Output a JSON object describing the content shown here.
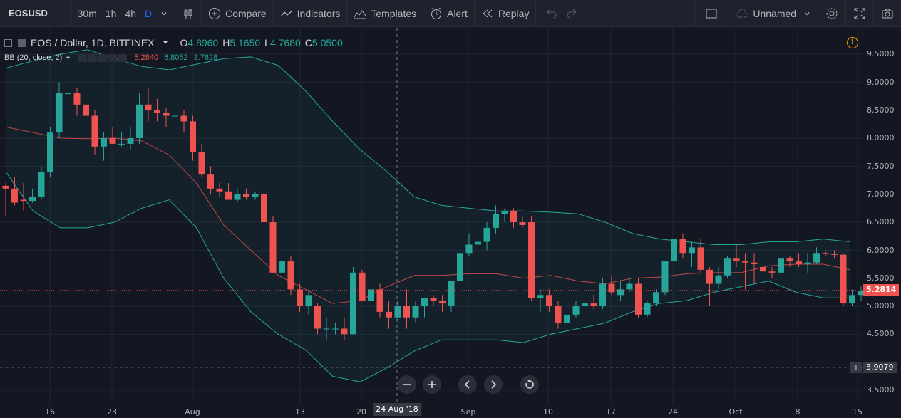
{
  "toolbar": {
    "symbol": "EOSUSD",
    "intervals": [
      "30m",
      "1h",
      "4h",
      "D"
    ],
    "active_interval": "D",
    "compare_label": "Compare",
    "indicators_label": "Indicators",
    "templates_label": "Templates",
    "alert_label": "Alert",
    "replay_label": "Replay",
    "layout_name": "Unnamed"
  },
  "legend": {
    "title": "EOS / Dollar, 1D, BITFINEX",
    "open_label": "O",
    "open": "4.8960",
    "high_label": "H",
    "high": "5.1650",
    "low_label": "L",
    "low": "4.7680",
    "close_label": "C",
    "close": "5.0500",
    "bb_label": "BB (20, close, 2)",
    "bb_basis": "5.2840",
    "bb_upper": "6.8052",
    "bb_lower": "3.7628",
    "warning_icon": "!"
  },
  "price_axis": {
    "ticks": [
      "9.5000",
      "9.0000",
      "8.5000",
      "8.0000",
      "7.5000",
      "7.0000",
      "6.5000",
      "6.0000",
      "5.5000",
      "5.0000",
      "4.5000",
      "3.5000"
    ],
    "last_price": "5.2814",
    "crosshair_price": "3.9079"
  },
  "time_axis": {
    "ticks": [
      "16",
      "23",
      "Aug",
      "13",
      "20",
      "Sep",
      "10",
      "17",
      "24",
      "Oct",
      "8",
      "15"
    ],
    "crosshair_date": "24 Aug '18"
  },
  "colors": {
    "up": "#26a69a",
    "down": "#ef5350",
    "bb_band": "#26a69a",
    "bb_basis": "#ef5350",
    "last_price": "#ef5350"
  },
  "chart_data": {
    "type": "candlestick",
    "title": "EOS / Dollar, 1D, BITFINEX",
    "x": [
      "Jul 16",
      "Jul 23",
      "Aug",
      "Aug 13",
      "Aug 20",
      "Sep",
      "Sep 10",
      "Sep 17",
      "Sep 24",
      "Oct",
      "Oct 8",
      "Oct 15"
    ],
    "ylim": [
      3.35,
      9.75
    ],
    "bars": [
      [
        7.15,
        7.2,
        6.6,
        7.1
      ],
      [
        7.1,
        7.3,
        6.8,
        6.85
      ],
      [
        6.9,
        7.2,
        6.7,
        6.88
      ],
      [
        6.88,
        7.1,
        6.85,
        6.95
      ],
      [
        6.95,
        7.5,
        6.9,
        7.4
      ],
      [
        7.4,
        8.2,
        7.3,
        8.1
      ],
      [
        8.1,
        9.0,
        8.0,
        8.8
      ],
      [
        8.8,
        9.4,
        8.4,
        8.8
      ],
      [
        8.8,
        8.9,
        8.4,
        8.6
      ],
      [
        8.6,
        8.7,
        8.2,
        8.4
      ],
      [
        8.4,
        8.5,
        7.7,
        7.85
      ],
      [
        7.85,
        8.1,
        7.6,
        8.0
      ],
      [
        8.0,
        8.2,
        7.9,
        7.9
      ],
      [
        7.9,
        8.1,
        7.85,
        7.9
      ],
      [
        7.9,
        8.2,
        7.8,
        8.0
      ],
      [
        8.0,
        8.8,
        7.9,
        8.6
      ],
      [
        8.6,
        8.9,
        8.3,
        8.5
      ],
      [
        8.5,
        8.7,
        8.3,
        8.45
      ],
      [
        8.45,
        8.55,
        8.2,
        8.4
      ],
      [
        8.4,
        8.5,
        8.3,
        8.4
      ],
      [
        8.4,
        8.5,
        8.1,
        8.3
      ],
      [
        8.3,
        8.4,
        7.6,
        7.75
      ],
      [
        7.75,
        7.9,
        7.3,
        7.35
      ],
      [
        7.35,
        7.5,
        7.0,
        7.1
      ],
      [
        7.1,
        7.2,
        6.95,
        7.05
      ],
      [
        7.05,
        7.2,
        6.9,
        6.9
      ],
      [
        6.9,
        7.1,
        6.85,
        7.0
      ],
      [
        7.0,
        7.1,
        6.9,
        6.95
      ],
      [
        6.95,
        7.05,
        6.9,
        7.0
      ],
      [
        7.0,
        7.2,
        6.5,
        6.5
      ],
      [
        6.5,
        6.6,
        5.6,
        5.6
      ],
      [
        5.6,
        5.9,
        5.4,
        5.8
      ],
      [
        5.8,
        5.9,
        5.2,
        5.3
      ],
      [
        5.3,
        5.4,
        4.9,
        5.0
      ],
      [
        5.0,
        5.3,
        4.85,
        5.2
      ],
      [
        5.0,
        5.05,
        4.5,
        4.6
      ],
      [
        4.6,
        4.8,
        4.4,
        4.6
      ],
      [
        4.6,
        4.7,
        4.5,
        4.6
      ],
      [
        4.6,
        4.8,
        4.4,
        4.5
      ],
      [
        4.5,
        5.7,
        4.5,
        5.6
      ],
      [
        5.6,
        5.65,
        5.1,
        5.1
      ],
      [
        5.1,
        5.35,
        4.8,
        5.3
      ],
      [
        5.3,
        5.4,
        4.8,
        4.9
      ],
      [
        4.9,
        5.1,
        4.6,
        4.8
      ],
      [
        4.8,
        5.1,
        4.75,
        5.0
      ],
      [
        5.0,
        5.3,
        4.6,
        4.8
      ],
      [
        4.8,
        5.1,
        4.7,
        5.0
      ],
      [
        5.0,
        5.15,
        4.8,
        5.15
      ],
      [
        5.15,
        5.2,
        5.0,
        5.1
      ],
      [
        5.1,
        5.2,
        4.9,
        5.05
      ],
      [
        5.0,
        5.4,
        4.9,
        5.45
      ],
      [
        5.45,
        6.0,
        5.4,
        5.95
      ],
      [
        5.95,
        6.3,
        5.9,
        6.1
      ],
      [
        6.1,
        6.3,
        6.0,
        6.15
      ],
      [
        6.15,
        6.5,
        6.0,
        6.4
      ],
      [
        6.4,
        6.8,
        6.3,
        6.65
      ],
      [
        6.65,
        6.75,
        6.5,
        6.7
      ],
      [
        6.7,
        6.75,
        6.4,
        6.5
      ],
      [
        6.5,
        6.6,
        6.4,
        6.45
      ],
      [
        6.5,
        6.6,
        5.1,
        5.15
      ],
      [
        5.15,
        5.3,
        4.9,
        5.2
      ],
      [
        5.2,
        5.3,
        4.9,
        5.0
      ],
      [
        5.0,
        5.1,
        4.6,
        4.7
      ],
      [
        4.7,
        4.9,
        4.6,
        4.85
      ],
      [
        4.85,
        5.1,
        4.8,
        5.0
      ],
      [
        5.0,
        5.1,
        4.9,
        5.05
      ],
      [
        5.05,
        5.2,
        4.95,
        5.0
      ],
      [
        5.0,
        5.5,
        4.95,
        5.4
      ],
      [
        5.4,
        5.55,
        5.2,
        5.25
      ],
      [
        5.2,
        5.45,
        5.1,
        5.3
      ],
      [
        5.3,
        5.5,
        5.25,
        5.4
      ],
      [
        5.4,
        5.5,
        4.8,
        4.85
      ],
      [
        4.85,
        5.1,
        4.8,
        5.05
      ],
      [
        5.05,
        5.3,
        5.0,
        5.25
      ],
      [
        5.25,
        5.8,
        5.2,
        5.8
      ],
      [
        5.8,
        6.3,
        5.7,
        6.2
      ],
      [
        6.2,
        6.3,
        5.85,
        5.95
      ],
      [
        5.95,
        6.15,
        5.7,
        6.05
      ],
      [
        6.05,
        6.2,
        5.6,
        5.65
      ],
      [
        5.65,
        5.7,
        5.0,
        5.4
      ],
      [
        5.4,
        5.7,
        5.3,
        5.55
      ],
      [
        5.55,
        5.9,
        5.5,
        5.85
      ],
      [
        5.85,
        6.1,
        5.7,
        5.8
      ],
      [
        5.8,
        5.95,
        5.3,
        5.78
      ],
      [
        5.78,
        5.95,
        5.4,
        5.75
      ],
      [
        5.7,
        5.85,
        5.5,
        5.62
      ],
      [
        5.62,
        5.7,
        5.5,
        5.6
      ],
      [
        5.6,
        5.9,
        5.55,
        5.85
      ],
      [
        5.85,
        5.9,
        5.7,
        5.8
      ],
      [
        5.8,
        5.95,
        5.7,
        5.75
      ],
      [
        5.75,
        5.95,
        5.6,
        5.78
      ],
      [
        5.78,
        6.05,
        5.75,
        5.95
      ],
      [
        5.95,
        6.0,
        5.9,
        5.93
      ],
      [
        5.93,
        6.0,
        5.85,
        5.92
      ],
      [
        5.92,
        5.95,
        5.0,
        5.05
      ],
      [
        5.05,
        5.3,
        5.0,
        5.2
      ],
      [
        5.2,
        5.35,
        5.1,
        5.28
      ],
      [
        5.28,
        5.35,
        5.2,
        5.28
      ]
    ],
    "bb_upper": [
      9.25,
      9.38,
      9.5,
      9.58,
      9.42,
      9.28,
      9.22,
      9.32,
      9.42,
      9.45,
      9.3,
      8.85,
      8.3,
      7.8,
      7.4,
      6.95,
      6.8,
      6.75,
      6.7,
      6.7,
      6.68,
      6.65,
      6.5,
      6.3,
      6.2,
      6.15,
      6.1,
      6.1,
      6.15,
      6.15,
      6.2,
      6.15
    ],
    "bb_basis": [
      8.2,
      8.1,
      8.0,
      7.99,
      8.0,
      7.95,
      7.7,
      7.2,
      6.45,
      6.0,
      5.55,
      5.3,
      5.05,
      5.1,
      5.35,
      5.55,
      5.55,
      5.58,
      5.58,
      5.5,
      5.55,
      5.45,
      5.4,
      5.5,
      5.52,
      5.58,
      5.6,
      5.6,
      5.72,
      5.75,
      5.75,
      5.65
    ],
    "bb_lower": [
      7.4,
      6.7,
      6.4,
      6.4,
      6.5,
      6.75,
      6.9,
      6.4,
      5.5,
      4.9,
      4.5,
      4.22,
      3.75,
      3.65,
      3.9,
      4.2,
      4.4,
      4.4,
      4.4,
      4.35,
      4.5,
      4.6,
      4.7,
      4.9,
      5.05,
      5.1,
      5.25,
      5.35,
      5.45,
      5.25,
      5.15,
      5.15
    ]
  }
}
